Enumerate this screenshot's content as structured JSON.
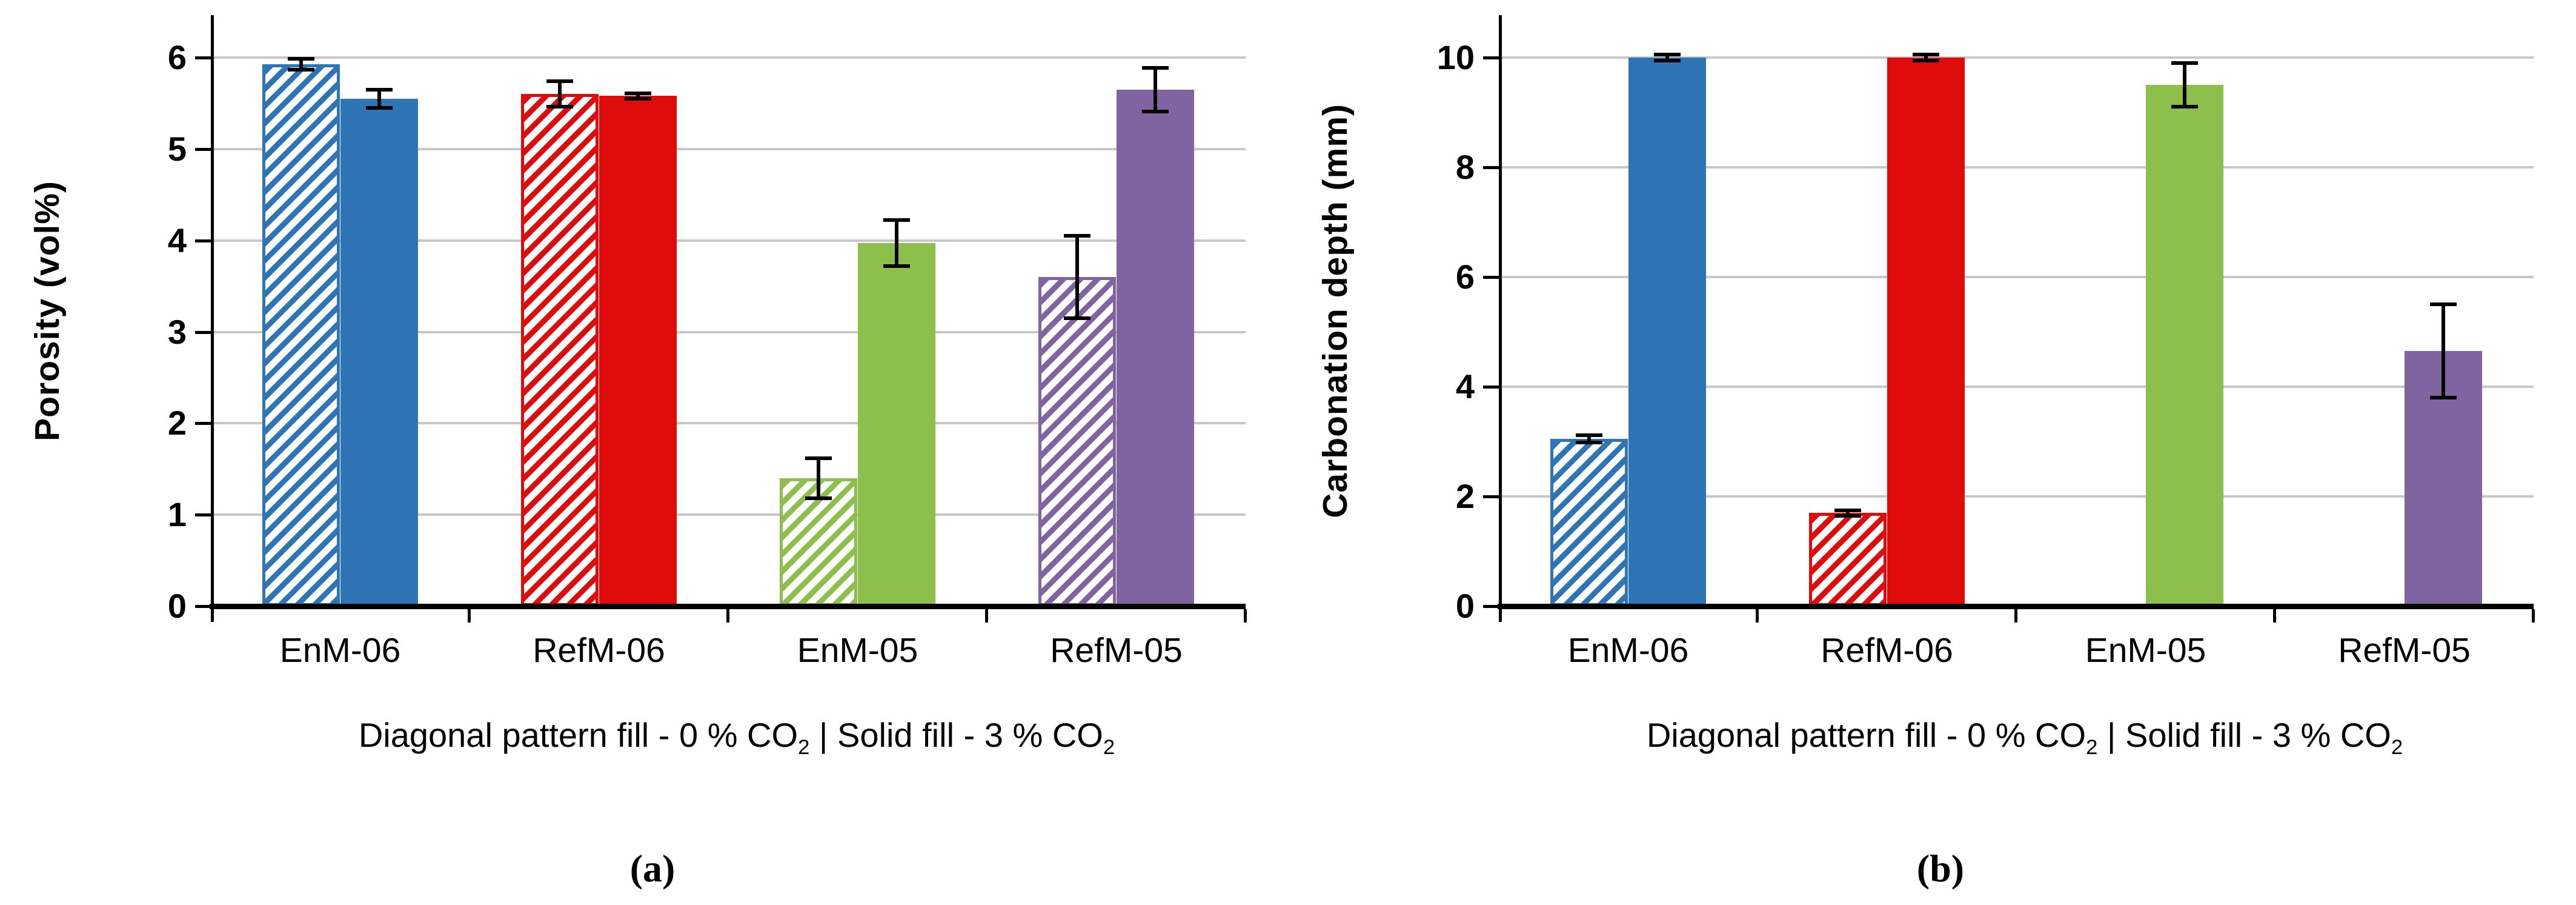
{
  "page": {
    "background": "#ffffff"
  },
  "captions": {
    "a": "(a)",
    "b": "(b)"
  },
  "note_segments": [
    {
      "text": "Diagonal pattern fill - 0 % CO"
    },
    {
      "text": "2",
      "sub": true
    },
    {
      "text": " | Solid fill - 3 % CO"
    },
    {
      "text": "2",
      "sub": true
    }
  ],
  "colors": {
    "blue": "#2E75B6",
    "red": "#E00B0B",
    "green": "#8DBF4C",
    "purple": "#8064A2",
    "gridline": "#C8C8C8",
    "axis": "#000000"
  },
  "chart_data": [
    {
      "id": "a",
      "type": "bar",
      "title": "",
      "ylabel": "Porosity (vol%)",
      "xlabel": "Diagonal pattern fill - 0 % CO2 | Solid fill - 3 % CO2",
      "categories": [
        "EnM-06",
        "RefM-06",
        "EnM-05",
        "RefM-05"
      ],
      "category_colors": [
        "#2E75B6",
        "#E00B0B",
        "#8DBF4C",
        "#8064A2"
      ],
      "ylim": [
        0,
        6
      ],
      "yticks": [
        0,
        1,
        2,
        3,
        4,
        5,
        6
      ],
      "grid": true,
      "legend_position": "none",
      "series": [
        {
          "name": "0 % CO2 (diagonal pattern fill)",
          "fill": "hatched",
          "values": [
            5.93,
            5.6,
            1.4,
            3.6
          ],
          "errors": [
            0.06,
            0.14,
            0.22,
            0.45
          ]
        },
        {
          "name": "3 % CO2 (solid fill)",
          "fill": "solid",
          "values": [
            5.55,
            5.58,
            3.97,
            5.65
          ],
          "errors": [
            0.1,
            0.03,
            0.25,
            0.24
          ]
        }
      ]
    },
    {
      "id": "b",
      "type": "bar",
      "title": "",
      "ylabel": "Carbonation depth (mm)",
      "xlabel": "Diagonal pattern fill - 0 % CO2 | Solid fill - 3 % CO2",
      "categories": [
        "EnM-06",
        "RefM-06",
        "EnM-05",
        "RefM-05"
      ],
      "category_colors": [
        "#2E75B6",
        "#E00B0B",
        "#8DBF4C",
        "#8064A2"
      ],
      "ylim": [
        0,
        10
      ],
      "yticks": [
        0,
        2,
        4,
        6,
        8,
        10
      ],
      "grid": true,
      "legend_position": "none",
      "series": [
        {
          "name": "0 % CO2 (diagonal pattern fill)",
          "fill": "hatched",
          "values": [
            3.05,
            1.7,
            0,
            0
          ],
          "errors": [
            0.07,
            0.05,
            0,
            0
          ]
        },
        {
          "name": "3 % CO2 (solid fill)",
          "fill": "solid",
          "values": [
            10,
            10,
            9.5,
            4.65
          ],
          "errors": [
            0.05,
            0.05,
            0.4,
            0.85
          ]
        }
      ]
    }
  ]
}
